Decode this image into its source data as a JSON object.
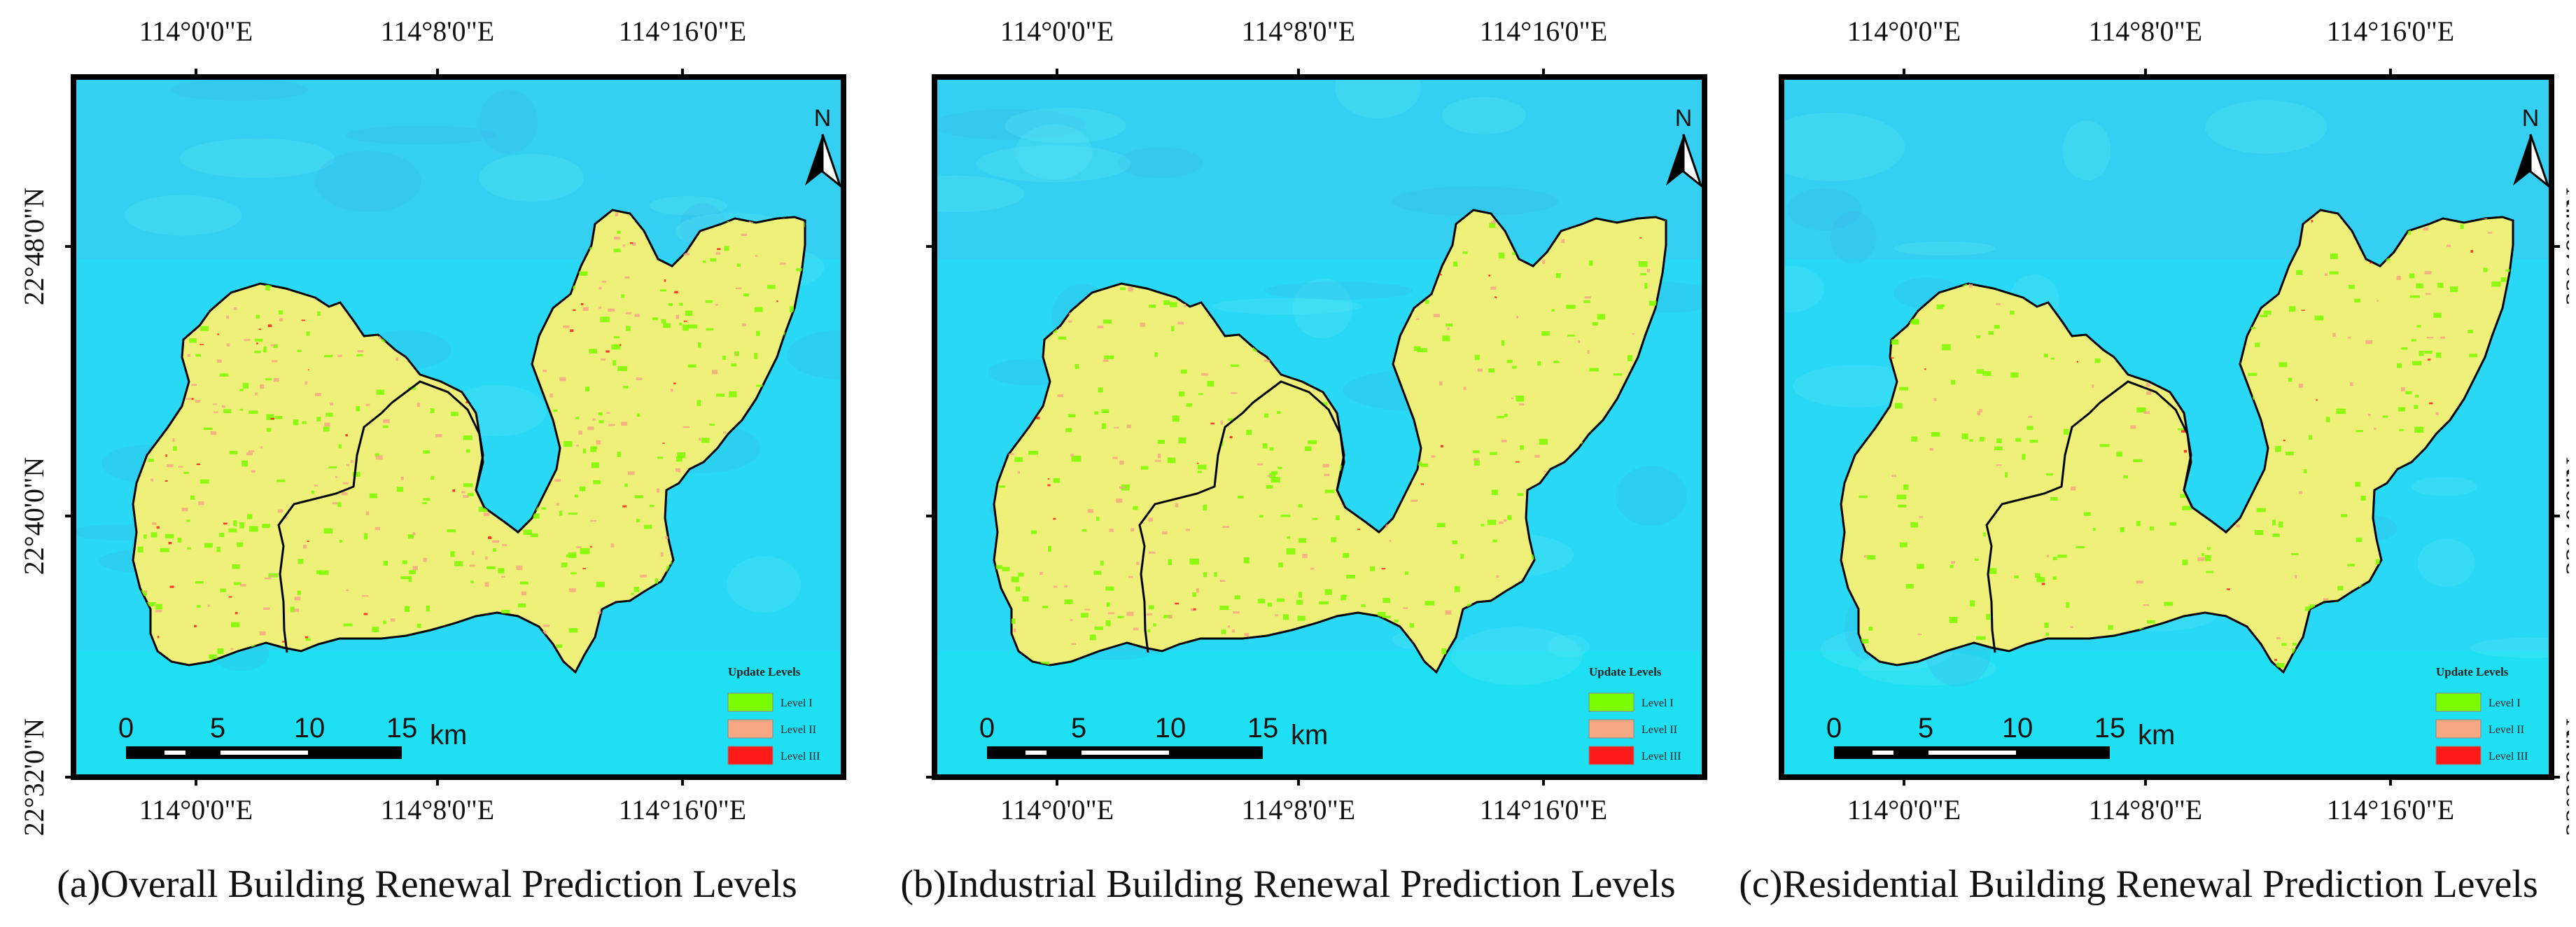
{
  "north_label": "N",
  "scale_bar": {
    "ticks": [
      "0",
      "5",
      "10",
      "15"
    ],
    "unit": "km"
  },
  "legend": {
    "title": "Update Levels",
    "items": [
      {
        "label": "Level I",
        "color": "#7cfc00"
      },
      {
        "label": "Level II",
        "color": "#f5a882"
      },
      {
        "label": "Level III",
        "color": "#ff1a1a"
      }
    ]
  },
  "coordinates": {
    "lon": [
      "114°0'0\"E",
      "114°8'0\"E",
      "114°16'0\"E"
    ],
    "lat": [
      "22°48'0\"N",
      "22°40'0\"N",
      "22°32'0\"N"
    ]
  },
  "colors": {
    "water": "#29d8f5",
    "land": "#eef07a",
    "boundary": "#000000"
  },
  "panels": [
    {
      "caption": "(a)Overall Building Renewal Prediction Levels",
      "level_density": 1.0
    },
    {
      "caption": "(b)Industrial Building Renewal Prediction Levels",
      "level_density": 0.55
    },
    {
      "caption": "(c)Residential Building Renewal Prediction Levels",
      "level_density": 0.4
    }
  ]
}
